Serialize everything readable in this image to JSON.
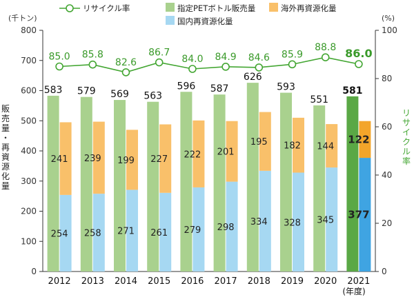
{
  "chart_data": {
    "type": "bar",
    "categories": [
      "2012",
      "2013",
      "2014",
      "2015",
      "2016",
      "2017",
      "2018",
      "2019",
      "2020",
      "2021"
    ],
    "x_suffix": "(年度)",
    "left_axis": {
      "unit": "(千トン)",
      "label": "販売量・再資源化量",
      "ylim": [
        0,
        800
      ],
      "ticks": [
        "0",
        "100",
        "200",
        "300",
        "400",
        "500",
        "600",
        "700",
        "800"
      ]
    },
    "right_axis": {
      "unit": "(%)",
      "label": "リサイクル率",
      "ylim": [
        0,
        100
      ],
      "ticks": [
        "0",
        "20",
        "40",
        "60",
        "80",
        "100"
      ]
    },
    "series": [
      {
        "name": "指定PETボトル販売量",
        "axis": "left",
        "values": [
          583,
          579,
          569,
          563,
          596,
          587,
          626,
          593,
          551,
          581
        ],
        "labels": [
          "583",
          "579",
          "569",
          "563",
          "596",
          "587",
          "626",
          "593",
          "551",
          "581"
        ]
      },
      {
        "name": "国内再資源化量",
        "axis": "left",
        "values": [
          254,
          258,
          271,
          261,
          279,
          298,
          334,
          328,
          345,
          377
        ],
        "labels": [
          "254",
          "258",
          "271",
          "261",
          "279",
          "298",
          "334",
          "328",
          "345",
          "377"
        ]
      },
      {
        "name": "海外再資源化量",
        "axis": "left",
        "values": [
          241,
          239,
          199,
          227,
          222,
          201,
          195,
          182,
          144,
          122
        ],
        "labels": [
          "241",
          "239",
          "199",
          "227",
          "222",
          "201",
          "195",
          "182",
          "144",
          "122"
        ]
      },
      {
        "name": "リサイクル率",
        "axis": "right",
        "type": "line",
        "values": [
          85.0,
          85.8,
          82.6,
          86.7,
          84.0,
          84.9,
          84.6,
          85.9,
          88.8,
          86.0
        ],
        "labels": [
          "85.0",
          "85.8",
          "82.6",
          "86.7",
          "84.0",
          "84.9",
          "84.6",
          "85.9",
          "88.8",
          "86.0"
        ]
      }
    ],
    "legend_position": "top",
    "grid": false,
    "colors": {
      "sales": "#a9d18e",
      "sales_highlight": "#5aa845",
      "domestic": "#a6d8f2",
      "domestic_highlight": "#3fa4e2",
      "overseas": "#f9c06a",
      "overseas_highlight": "#f3a52a",
      "rate": "#43a632"
    },
    "highlight_index": 9
  }
}
